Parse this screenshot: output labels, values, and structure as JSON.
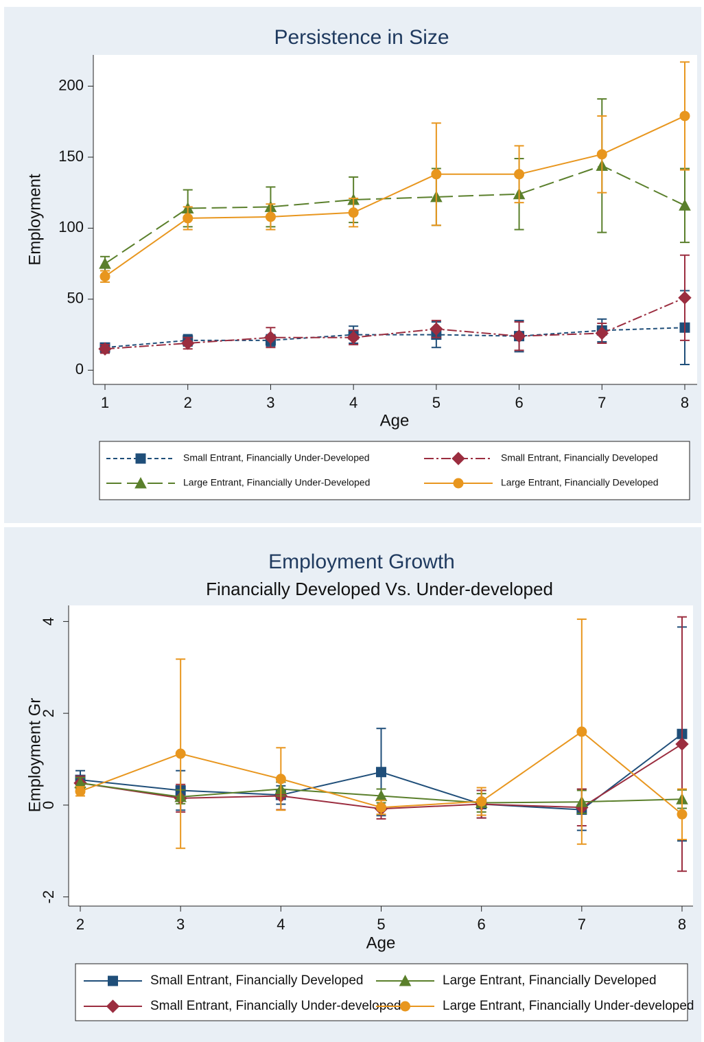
{
  "chart_data": [
    {
      "type": "line",
      "title": "Persistence in Size",
      "x_label": "Age",
      "y_label": "Employment",
      "x": [
        1,
        2,
        3,
        4,
        5,
        6,
        7,
        8
      ],
      "xlim": [
        1,
        8
      ],
      "xticks": [
        1,
        2,
        3,
        4,
        5,
        6,
        7,
        8
      ],
      "ylim": [
        -10,
        222
      ],
      "yticks": [
        0,
        50,
        100,
        150,
        200
      ],
      "series": [
        {
          "name": "Small Entrant, Financially Under-Developed",
          "color": "#1f4e79",
          "marker": "square",
          "dash": "6,4",
          "values": [
            16,
            21,
            21,
            25,
            25,
            24,
            28,
            30
          ],
          "errors": [
            3,
            4,
            4,
            6,
            9,
            11,
            8,
            26
          ]
        },
        {
          "name": "Small Entrant, Financially Developed",
          "color": "#9b2d3f",
          "marker": "diamond",
          "dash": "14,4,3,4",
          "values": [
            15,
            19,
            23,
            23,
            29,
            24,
            26,
            51
          ],
          "errors": [
            3,
            4,
            7,
            5,
            6,
            10,
            7,
            30
          ]
        },
        {
          "name": "Large Entrant, Financially Under-Developed",
          "color": "#5a7f2b",
          "marker": "triangle",
          "dash": "22,8",
          "values": [
            75,
            114,
            115,
            120,
            122,
            124,
            144,
            116
          ],
          "errors": [
            5,
            13,
            14,
            16,
            20,
            25,
            47,
            26
          ]
        },
        {
          "name": "Large Entrant, Financially Developed",
          "color": "#e8961e",
          "marker": "circle",
          "dash": "",
          "values": [
            66,
            107,
            108,
            111,
            138,
            138,
            152,
            179
          ],
          "errors": [
            4,
            8,
            9,
            10,
            36,
            20,
            27,
            38
          ]
        }
      ]
    },
    {
      "type": "line",
      "title": "Employment Growth",
      "subtitle": "Financially Developed Vs. Under-developed",
      "x_label": "Age",
      "y_label": "Employment Gr",
      "x": [
        2,
        3,
        4,
        5,
        6,
        7,
        8
      ],
      "xlim": [
        2,
        8
      ],
      "xticks": [
        2,
        3,
        4,
        5,
        6,
        7,
        8
      ],
      "ylim": [
        -2.2,
        4.35
      ],
      "yticks": [
        -2,
        0,
        2,
        4
      ],
      "series": [
        {
          "name": "Small Entrant, Financially Developed",
          "color": "#1f4e79",
          "marker": "square",
          "dash": "",
          "values": [
            0.55,
            0.32,
            0.22,
            0.72,
            0.02,
            -0.1,
            1.55
          ],
          "errors": [
            0.2,
            0.43,
            0.2,
            0.95,
            0.3,
            0.45,
            2.33
          ]
        },
        {
          "name": "Small Entrant, Financially Under-developed",
          "color": "#9b2d3f",
          "marker": "diamond",
          "dash": "",
          "values": [
            0.48,
            0.15,
            0.2,
            -0.08,
            0.02,
            -0.05,
            1.33
          ],
          "errors": [
            0.15,
            0.3,
            0.3,
            0.22,
            0.3,
            0.4,
            2.77
          ]
        },
        {
          "name": "Large Entrant, Financially Developed",
          "color": "#5a7f2b",
          "marker": "triangle",
          "dash": "",
          "values": [
            0.48,
            0.18,
            0.35,
            0.2,
            0.05,
            0.07,
            0.13
          ],
          "errors": [
            0.12,
            0.15,
            0.15,
            0.15,
            0.2,
            0.25,
            0.2
          ]
        },
        {
          "name": "Large Entrant, Financially Under-developed",
          "color": "#e8961e",
          "marker": "circle",
          "dash": "",
          "values": [
            0.3,
            1.12,
            0.57,
            -0.05,
            0.08,
            1.6,
            -0.2
          ],
          "errors": [
            0.1,
            2.06,
            0.68,
            0.15,
            0.3,
            2.45,
            0.55
          ]
        }
      ]
    }
  ]
}
